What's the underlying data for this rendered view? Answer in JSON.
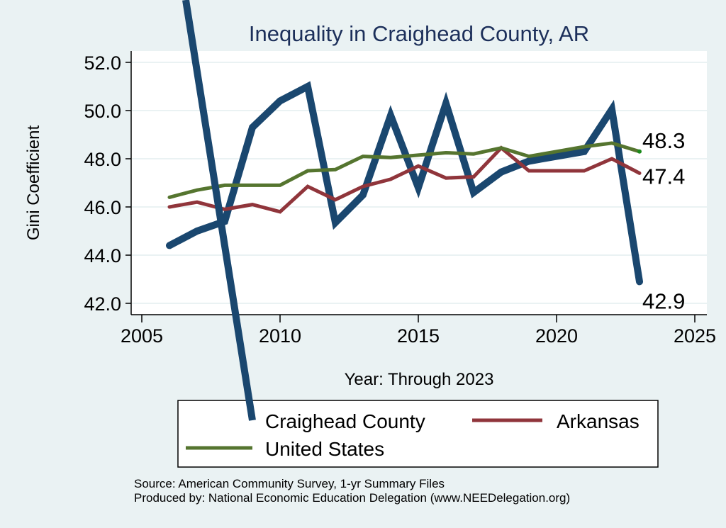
{
  "chart_data": {
    "type": "line",
    "title": "Inequality in Craighead County, AR",
    "xlabel": "Year: Through 2023",
    "ylabel": "Gini Coefficient",
    "xlim": [
      2005,
      2025
    ],
    "ylim": [
      42.0,
      52.0
    ],
    "xticks": [
      2005,
      2010,
      2015,
      2020,
      2025
    ],
    "yticks": [
      "42.0",
      "44.0",
      "46.0",
      "48.0",
      "50.0",
      "52.0"
    ],
    "grid": true,
    "legend_position": "bottom",
    "x": [
      2006,
      2007,
      2008,
      2009,
      2010,
      2011,
      2012,
      2013,
      2014,
      2015,
      2016,
      2017,
      2018,
      2019,
      2020,
      2021,
      2022,
      2023
    ],
    "series": [
      {
        "name": "Craighead County",
        "color": "#1a476f",
        "values": [
          44.4,
          45.0,
          45.4,
          49.3,
          50.4,
          51.0,
          45.35,
          46.5,
          49.8,
          46.8,
          50.3,
          46.6,
          47.45,
          47.9,
          48.1,
          48.3,
          50.05,
          42.9
        ],
        "end_label": "42.9"
      },
      {
        "name": "Arkansas",
        "color": "#90353b",
        "values": [
          46.0,
          46.2,
          45.9,
          46.1,
          45.8,
          46.85,
          46.3,
          46.85,
          47.15,
          47.7,
          47.2,
          47.25,
          48.45,
          47.5,
          47.5,
          47.5,
          48.0,
          47.4
        ],
        "end_label": "47.4"
      },
      {
        "name": "United States",
        "color": "#55752f",
        "values": [
          46.4,
          46.7,
          46.9,
          46.9,
          46.9,
          47.5,
          47.55,
          48.1,
          48.05,
          48.15,
          48.25,
          48.2,
          48.45,
          48.1,
          48.3,
          48.5,
          48.65,
          48.3
        ],
        "end_label": "48.3"
      }
    ],
    "notes": [
      "Source: American Community Survey, 1-yr Summary Files",
      "Produced by: National Economic Education Delegation (www.NEEDelegation.org)"
    ]
  }
}
